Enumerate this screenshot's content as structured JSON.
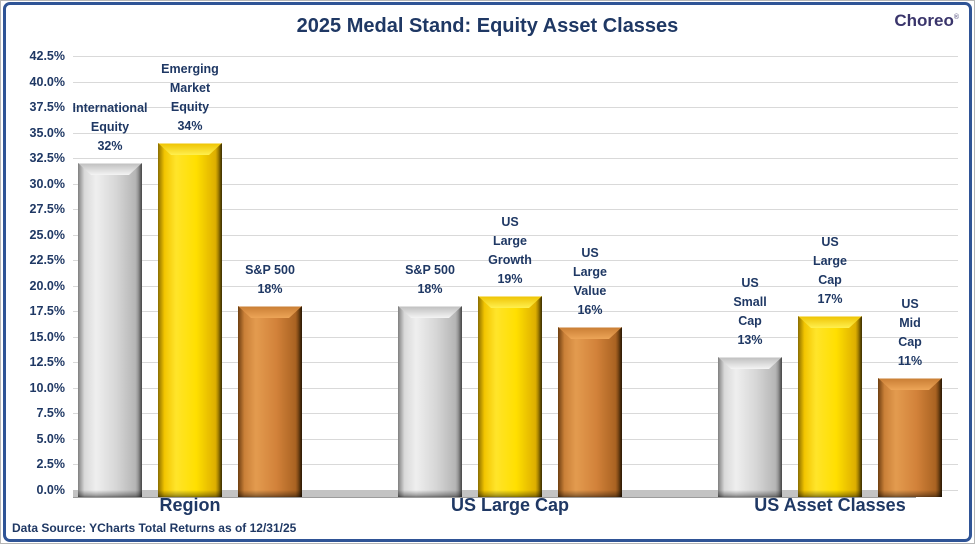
{
  "title": "2025 Medal Stand: Equity Asset Classes",
  "logo": {
    "text": "Choreo",
    "mark": "®"
  },
  "footer": "Data Source: YCharts Total Returns as of 12/31/25",
  "colors": {
    "silver": "#d9d9d9",
    "gold": "#ffdf00",
    "bronze": "#d2823a",
    "text_navy": "#1f3864",
    "border_navy": "#2f5496"
  },
  "chart_data": {
    "type": "bar",
    "title": "2025 Medal Stand: Equity Asset Classes",
    "ylabel": "",
    "xlabel": "",
    "ylim": [
      0,
      42.5
    ],
    "ytick_step": 2.5,
    "ytick_format": "percent_one_decimal",
    "grid": true,
    "legend": false,
    "categories": [
      "Region",
      "US Large Cap",
      "US Asset Classes"
    ],
    "groups": [
      {
        "label": "Region",
        "bars": [
          {
            "name": "International Equity",
            "name_lines": [
              "International",
              "Equity"
            ],
            "value": 32,
            "value_label": "32%",
            "metal": "silver"
          },
          {
            "name": "Emerging Market Equity",
            "name_lines": [
              "Emerging",
              "Market",
              "Equity"
            ],
            "value": 34,
            "value_label": "34%",
            "metal": "gold"
          },
          {
            "name": "S&P 500",
            "name_lines": [
              "S&P 500"
            ],
            "value": 18,
            "value_label": "18%",
            "metal": "bronze"
          }
        ]
      },
      {
        "label": "US Large Cap",
        "bars": [
          {
            "name": "S&P 500",
            "name_lines": [
              "S&P 500"
            ],
            "value": 18,
            "value_label": "18%",
            "metal": "silver"
          },
          {
            "name": "US Large Growth",
            "name_lines": [
              "US",
              "Large",
              "Growth"
            ],
            "value": 19,
            "value_label": "19%",
            "metal": "gold"
          },
          {
            "name": "US Large Value",
            "name_lines": [
              "US",
              "Large",
              "Value"
            ],
            "value": 16,
            "value_label": "16%",
            "metal": "bronze"
          }
        ]
      },
      {
        "label": "US Asset Classes",
        "bars": [
          {
            "name": "US Small Cap",
            "name_lines": [
              "US",
              "Small",
              "Cap"
            ],
            "value": 13,
            "value_label": "13%",
            "metal": "silver"
          },
          {
            "name": "US Large Cap",
            "name_lines": [
              "US",
              "Large",
              "Cap"
            ],
            "value": 17,
            "value_label": "17%",
            "metal": "gold"
          },
          {
            "name": "US Mid Cap",
            "name_lines": [
              "US",
              "Mid",
              "Cap"
            ],
            "value": 11,
            "value_label": "11%",
            "metal": "bronze"
          }
        ]
      }
    ]
  }
}
